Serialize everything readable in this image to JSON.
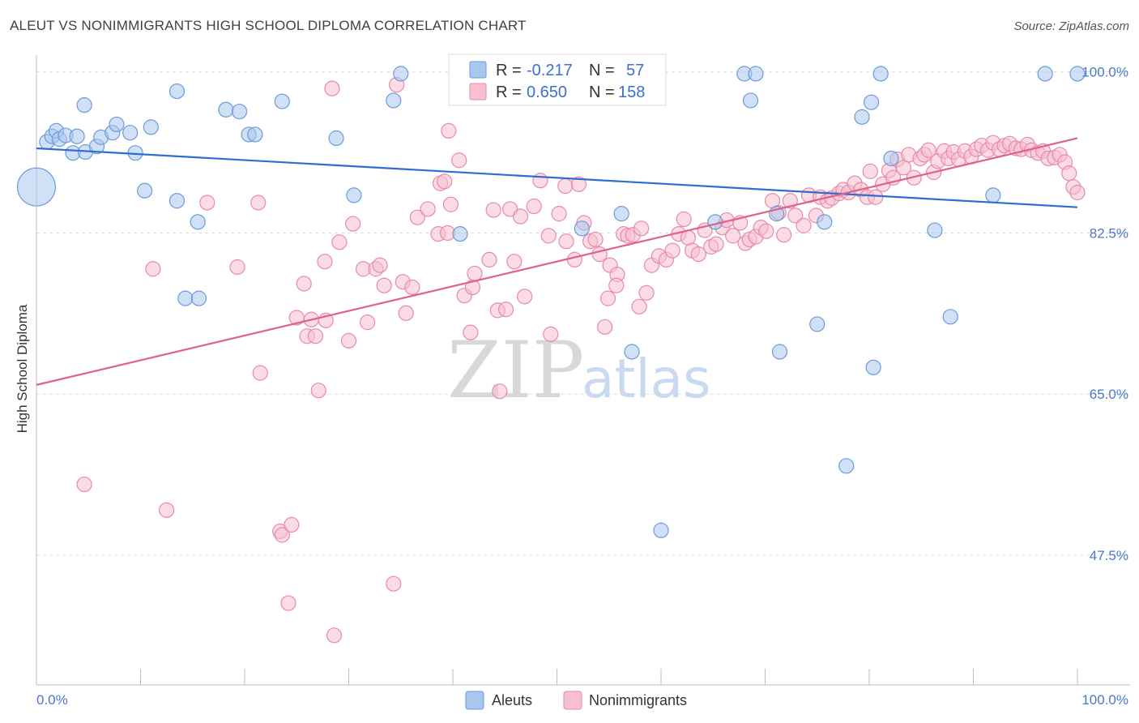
{
  "title": "ALEUT VS NONIMMIGRANTS HIGH SCHOOL DIPLOMA CORRELATION CHART",
  "source": "Source: ZipAtlas.com",
  "watermark": {
    "zip": "ZIP",
    "atlas": "atlas"
  },
  "legend_top": {
    "rows": [
      {
        "r_label": "R =",
        "r_value": "-0.217",
        "n_label": "N =",
        "n_value": "57",
        "color": "#a9c6ef",
        "stroke": "#6e9ad8"
      },
      {
        "r_label": "R =",
        "r_value": "0.650",
        "n_label": "N =",
        "n_value": "158",
        "color": "#f7bfd0",
        "stroke": "#e78aa7"
      }
    ]
  },
  "legend_bottom": [
    {
      "label": "Aleuts",
      "color": "#a9c6ef",
      "stroke": "#6e9ad8"
    },
    {
      "label": "Nonimmigrants",
      "color": "#f7bfd0",
      "stroke": "#e78aa7"
    }
  ],
  "chart_data": {
    "type": "scatter",
    "title": "ALEUT VS NONIMMIGRANTS HIGH SCHOOL DIPLOMA CORRELATION CHART",
    "xlabel": "",
    "ylabel": "High School Diploma",
    "xlim": [
      0,
      100
    ],
    "ylim": [
      33.5,
      102
    ],
    "x_tick_labels": [
      "0.0%",
      "100.0%"
    ],
    "y_ticks": [
      100,
      82.5,
      65,
      47.5
    ],
    "y_tick_labels": [
      "100.0%",
      "82.5%",
      "65.0%",
      "47.5%"
    ],
    "grid": "horizontal dashed",
    "series": [
      {
        "name": "Aleuts",
        "color": "#a9c6ef",
        "stroke": "#6e9ad8",
        "trend": {
          "x": [
            0,
            100
          ],
          "y": [
            91.7,
            85.3
          ],
          "color": "#2f6dcf"
        },
        "points": [
          [
            0,
            87.5
          ],
          [
            1,
            92.4
          ],
          [
            1.5,
            93
          ],
          [
            1.9,
            93.6
          ],
          [
            2.2,
            92.7
          ],
          [
            2.8,
            93.1
          ],
          [
            3.5,
            91.2
          ],
          [
            3.9,
            93
          ],
          [
            4.6,
            96.4
          ],
          [
            4.7,
            91.3
          ],
          [
            5.8,
            91.9
          ],
          [
            6.2,
            92.9
          ],
          [
            7.3,
            93.4
          ],
          [
            7.7,
            94.3
          ],
          [
            9,
            93.4
          ],
          [
            9.5,
            91.2
          ],
          [
            10.4,
            87.1
          ],
          [
            11,
            94
          ],
          [
            13.5,
            97.9
          ],
          [
            13.5,
            86
          ],
          [
            14.3,
            75.4
          ],
          [
            15.5,
            83.7
          ],
          [
            18.2,
            95.9
          ],
          [
            19.5,
            95.7
          ],
          [
            20.4,
            93.2
          ],
          [
            21,
            93.2
          ],
          [
            23.6,
            96.8
          ],
          [
            28.8,
            92.8
          ],
          [
            30.5,
            86.6
          ],
          [
            34.3,
            96.9
          ],
          [
            35,
            99.8
          ],
          [
            40.7,
            82.4
          ],
          [
            44.7,
            99.8
          ],
          [
            52.4,
            83
          ],
          [
            56.2,
            84.6
          ],
          [
            57.2,
            69.6
          ],
          [
            60,
            50.2
          ],
          [
            65.2,
            83.7
          ],
          [
            68,
            99.8
          ],
          [
            68.6,
            96.9
          ],
          [
            69.1,
            99.8
          ],
          [
            71.1,
            84.6
          ],
          [
            71.4,
            69.6
          ],
          [
            75.7,
            83.7
          ],
          [
            77.8,
            57.2
          ],
          [
            79.3,
            95.1
          ],
          [
            80.2,
            96.7
          ],
          [
            80.4,
            67.9
          ],
          [
            81.1,
            99.8
          ],
          [
            82.1,
            90.6
          ],
          [
            86.3,
            82.8
          ],
          [
            87.8,
            73.4
          ],
          [
            91.9,
            86.6
          ],
          [
            96.9,
            99.8
          ],
          [
            100,
            99.8
          ],
          [
            75,
            72.6
          ],
          [
            15.6,
            75.4
          ]
        ],
        "sizes": {
          "0": 2.6
        }
      },
      {
        "name": "Nonimmigrants",
        "color": "#f7bfd0",
        "stroke": "#e78aa7",
        "trend": {
          "x": [
            0,
            100
          ],
          "y": [
            66,
            92.8
          ],
          "color": "#e0608a"
        },
        "points": [
          [
            4.6,
            55.2
          ],
          [
            11.2,
            78.6
          ],
          [
            12.5,
            52.4
          ],
          [
            16.4,
            85.8
          ],
          [
            19.3,
            78.8
          ],
          [
            21.3,
            85.8
          ],
          [
            21.5,
            67.3
          ],
          [
            23.4,
            50.1
          ],
          [
            23.6,
            49.7
          ],
          [
            24.2,
            42.3
          ],
          [
            24.5,
            50.8
          ],
          [
            25,
            73.3
          ],
          [
            26,
            71.3
          ],
          [
            25.7,
            77
          ],
          [
            26.8,
            71.3
          ],
          [
            26.4,
            73.1
          ],
          [
            27.1,
            65.4
          ],
          [
            27.8,
            73
          ],
          [
            27.7,
            79.4
          ],
          [
            28.6,
            38.8
          ],
          [
            28.4,
            98.2
          ],
          [
            29.1,
            81.5
          ],
          [
            30,
            70.8
          ],
          [
            30.4,
            83.5
          ],
          [
            31.4,
            78.6
          ],
          [
            31.8,
            72.8
          ],
          [
            32.6,
            78.6
          ],
          [
            33,
            79
          ],
          [
            33.4,
            76.8
          ],
          [
            34.3,
            44.4
          ],
          [
            34.6,
            98.6
          ],
          [
            35.2,
            77.2
          ],
          [
            35.5,
            73.8
          ],
          [
            36.1,
            76.6
          ],
          [
            36.6,
            84.2
          ],
          [
            37.6,
            85.1
          ],
          [
            38.6,
            82.4
          ],
          [
            38.8,
            87.9
          ],
          [
            39.5,
            82.5
          ],
          [
            39.8,
            85.6
          ],
          [
            39.2,
            88.1
          ],
          [
            39.6,
            93.6
          ],
          [
            40.6,
            90.4
          ],
          [
            41.1,
            75.7
          ],
          [
            41.7,
            71.7
          ],
          [
            41.9,
            76.6
          ],
          [
            42.1,
            78.1
          ],
          [
            43.5,
            79.6
          ],
          [
            43.9,
            85
          ],
          [
            44.3,
            74.1
          ],
          [
            44.5,
            65.3
          ],
          [
            45.5,
            85.1
          ],
          [
            45.9,
            79.4
          ],
          [
            45.1,
            74.2
          ],
          [
            46.5,
            84.3
          ],
          [
            46.9,
            75.6
          ],
          [
            47.8,
            85.4
          ],
          [
            48.4,
            88.2
          ],
          [
            49.2,
            82.2
          ],
          [
            49.4,
            71.5
          ],
          [
            50.2,
            84.6
          ],
          [
            50.8,
            87.6
          ],
          [
            50.9,
            81.6
          ],
          [
            51.7,
            79.6
          ],
          [
            52.1,
            87.8
          ],
          [
            52.6,
            83.6
          ],
          [
            53.2,
            81.6
          ],
          [
            53.7,
            81.8
          ],
          [
            54.1,
            80.2
          ],
          [
            54.6,
            72.3
          ],
          [
            54.9,
            75.4
          ],
          [
            55.1,
            79
          ],
          [
            55.8,
            78
          ],
          [
            55.7,
            76.8
          ],
          [
            56.4,
            82.4
          ],
          [
            56.8,
            82.2
          ],
          [
            57.3,
            82.3
          ],
          [
            57.9,
            74.5
          ],
          [
            58.1,
            83
          ],
          [
            58.6,
            76
          ],
          [
            59.1,
            79
          ],
          [
            59.8,
            80
          ],
          [
            60.5,
            79.6
          ],
          [
            61.1,
            80.6
          ],
          [
            61.7,
            82.4
          ],
          [
            62.2,
            84
          ],
          [
            62.6,
            82
          ],
          [
            63,
            80.6
          ],
          [
            63.6,
            80.2
          ],
          [
            64.2,
            82.8
          ],
          [
            64.8,
            81
          ],
          [
            65.3,
            81.3
          ],
          [
            65.9,
            83.1
          ],
          [
            66.3,
            83.9
          ],
          [
            66.9,
            82.2
          ],
          [
            67.6,
            83.6
          ],
          [
            68.1,
            81.4
          ],
          [
            68.5,
            81.8
          ],
          [
            69.1,
            82.1
          ],
          [
            69.6,
            83.1
          ],
          [
            70.1,
            82.7
          ],
          [
            70.7,
            86
          ],
          [
            71.3,
            84.7
          ],
          [
            71.8,
            82.3
          ],
          [
            72.4,
            86
          ],
          [
            72.9,
            84.4
          ],
          [
            73.7,
            83.3
          ],
          [
            74.2,
            86.6
          ],
          [
            74.9,
            84.4
          ],
          [
            75.3,
            86.4
          ],
          [
            76,
            86
          ],
          [
            76.4,
            86.3
          ],
          [
            77.1,
            86.8
          ],
          [
            77.5,
            87.2
          ],
          [
            78,
            86.9
          ],
          [
            78.6,
            87.9
          ],
          [
            79.2,
            87.2
          ],
          [
            79.8,
            86.4
          ],
          [
            80.1,
            89.2
          ],
          [
            80.6,
            86.4
          ],
          [
            81.3,
            87.8
          ],
          [
            81.9,
            89.3
          ],
          [
            82.3,
            88.5
          ],
          [
            82.7,
            90.5
          ],
          [
            83.3,
            89.6
          ],
          [
            83.8,
            91
          ],
          [
            84.3,
            88.5
          ],
          [
            84.9,
            90.6
          ],
          [
            85.3,
            91
          ],
          [
            85.7,
            91.5
          ],
          [
            86.2,
            89.1
          ],
          [
            86.6,
            90.3
          ],
          [
            87.2,
            91.4
          ],
          [
            87.6,
            90.6
          ],
          [
            88.1,
            91.3
          ],
          [
            88.6,
            90.5
          ],
          [
            89.2,
            91.4
          ],
          [
            89.8,
            90.8
          ],
          [
            90.3,
            91.6
          ],
          [
            90.8,
            92
          ],
          [
            91.4,
            91.5
          ],
          [
            91.9,
            92.3
          ],
          [
            92.5,
            91.6
          ],
          [
            93,
            92
          ],
          [
            93.5,
            92.2
          ],
          [
            94.1,
            91.7
          ],
          [
            94.6,
            91.6
          ],
          [
            95.2,
            92.1
          ],
          [
            95.6,
            91.5
          ],
          [
            96.2,
            91.2
          ],
          [
            96.7,
            91.4
          ],
          [
            97.2,
            90.6
          ],
          [
            97.8,
            90.7
          ],
          [
            98.3,
            91
          ],
          [
            98.8,
            90.2
          ],
          [
            99.2,
            89
          ],
          [
            99.6,
            87.5
          ],
          [
            100,
            86.9
          ]
        ]
      }
    ]
  }
}
